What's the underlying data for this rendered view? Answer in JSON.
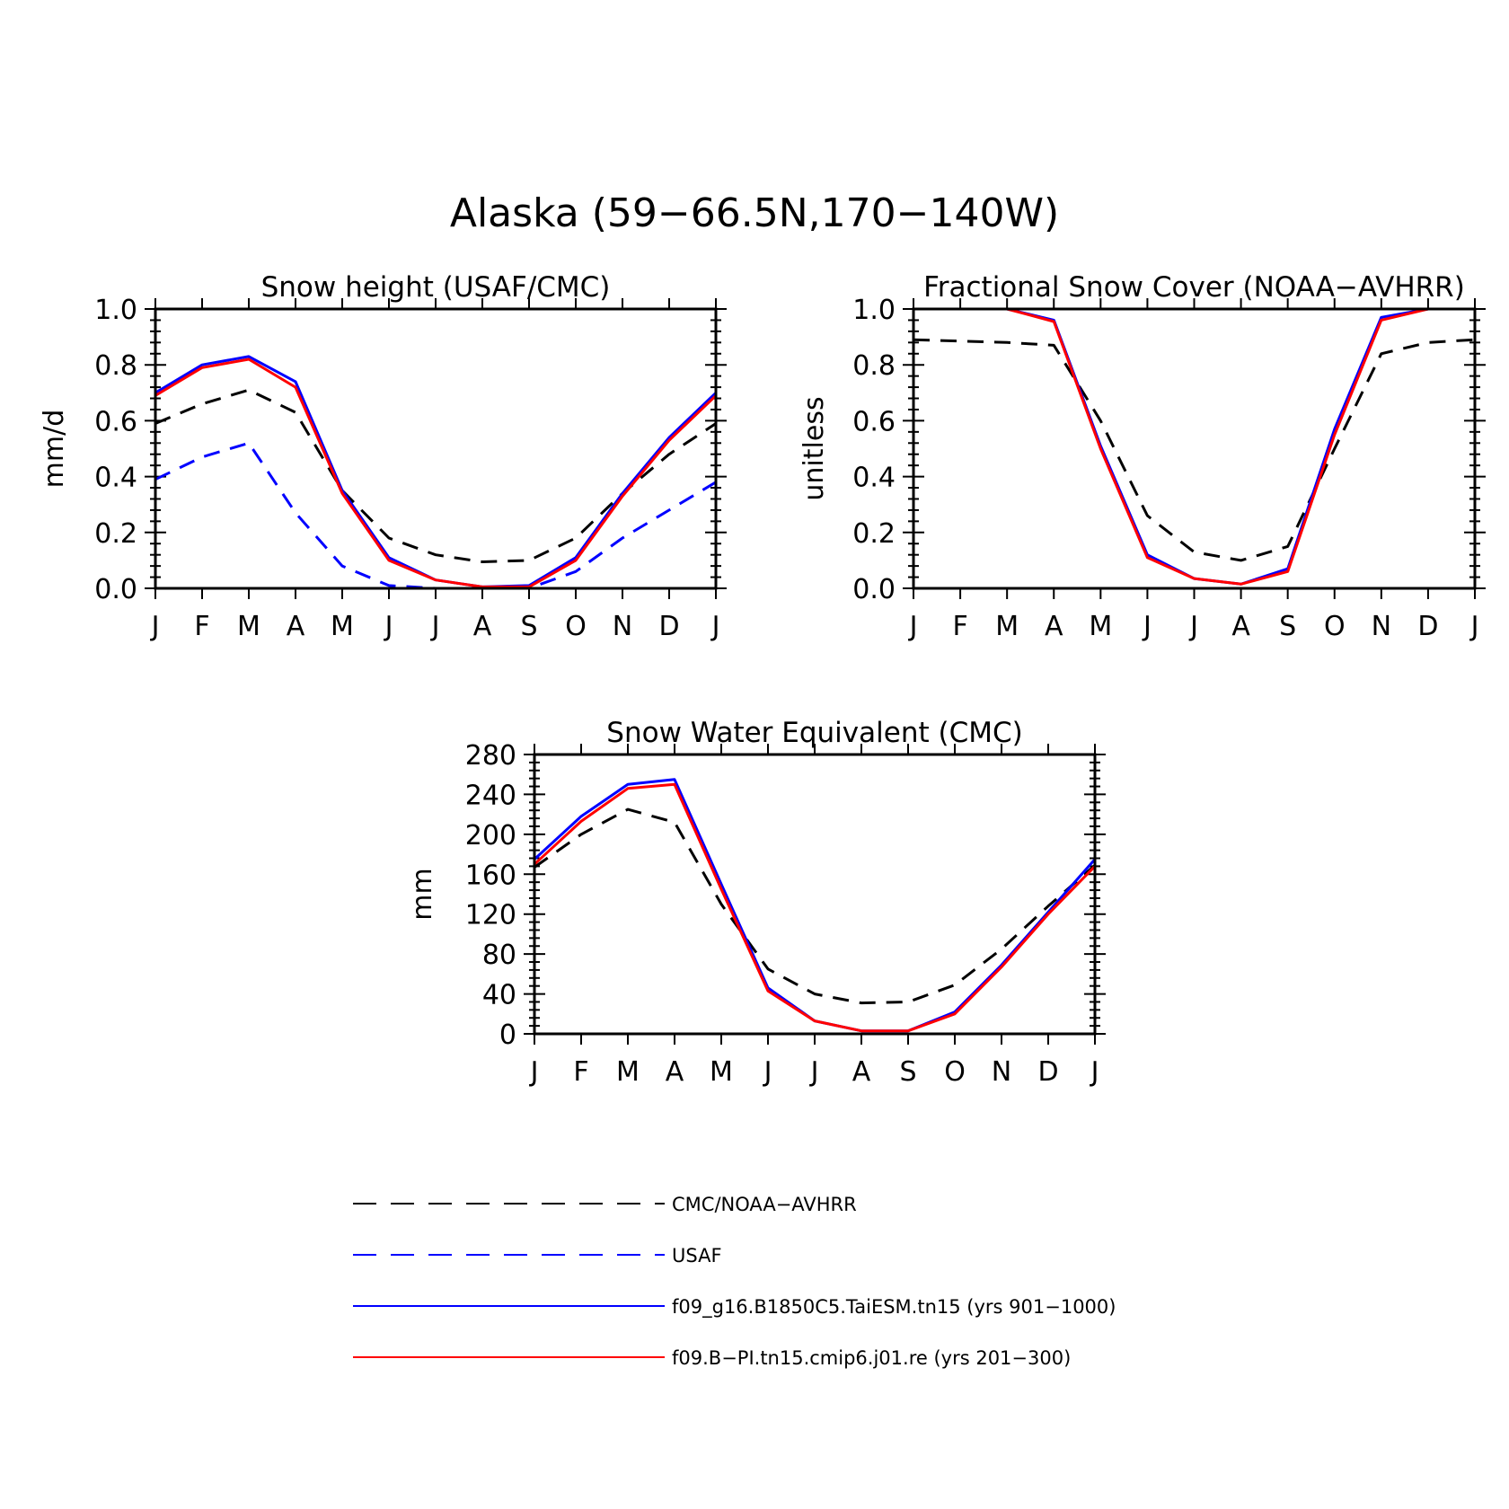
{
  "figure": {
    "title": "Alaska (59−66.5N,170−140W)"
  },
  "legend": [
    {
      "label": "CMC/NOAA−AVHRR",
      "color": "#000000",
      "dash": true
    },
    {
      "label": "USAF",
      "color": "#0000ff",
      "dash": true
    },
    {
      "label": "f09_g16.B1850C5.TaiESM.tn15 (yrs 901−1000)",
      "color": "#0000ff",
      "dash": false
    },
    {
      "label": "f09.B−PI.tn15.cmip6.j01.re (yrs 201−300)",
      "color": "#ff0000",
      "dash": false
    }
  ],
  "chart_data": [
    {
      "type": "line",
      "title": "Snow height (USAF/CMC)",
      "xlabel": "",
      "ylabel": "mm/d",
      "ylim": [
        0,
        1.0
      ],
      "yticks": [
        "0.0",
        "0.2",
        "0.4",
        "0.6",
        "0.8",
        "1.0"
      ],
      "categories": [
        "J",
        "F",
        "M",
        "A",
        "M",
        "J",
        "J",
        "A",
        "S",
        "O",
        "N",
        "D",
        "J"
      ],
      "series": [
        {
          "name": "CMC/NOAA−AVHRR",
          "color": "#000000",
          "dash": true,
          "values": [
            0.59,
            0.66,
            0.71,
            0.63,
            0.35,
            0.18,
            0.12,
            0.095,
            0.1,
            0.18,
            0.34,
            0.48,
            0.59
          ]
        },
        {
          "name": "USAF",
          "color": "#0000ff",
          "dash": true,
          "values": [
            0.39,
            0.47,
            0.52,
            0.27,
            0.08,
            0.01,
            0.0,
            0.0,
            0.0,
            0.06,
            0.18,
            0.28,
            0.38
          ]
        },
        {
          "name": "f09_g16.B1850C5.TaiESM.tn15 (yrs 901−1000)",
          "color": "#0000ff",
          "dash": false,
          "values": [
            0.7,
            0.8,
            0.83,
            0.74,
            0.35,
            0.11,
            0.03,
            0.005,
            0.01,
            0.11,
            0.34,
            0.54,
            0.7
          ]
        },
        {
          "name": "f09.B−PI.tn15.cmip6.j01.re (yrs 201−300)",
          "color": "#ff0000",
          "dash": false,
          "values": [
            0.69,
            0.79,
            0.82,
            0.72,
            0.34,
            0.1,
            0.03,
            0.005,
            0.005,
            0.1,
            0.33,
            0.53,
            0.69
          ]
        }
      ]
    },
    {
      "type": "line",
      "title": "Fractional Snow Cover (NOAA−AVHRR)",
      "xlabel": "",
      "ylabel": "unitless",
      "ylim": [
        0,
        1.0
      ],
      "yticks": [
        "0.0",
        "0.2",
        "0.4",
        "0.6",
        "0.8",
        "1.0"
      ],
      "categories": [
        "J",
        "F",
        "M",
        "A",
        "M",
        "J",
        "J",
        "A",
        "S",
        "O",
        "N",
        "D",
        "J"
      ],
      "series": [
        {
          "name": "CMC/NOAA−AVHRR",
          "color": "#000000",
          "dash": true,
          "values": [
            0.89,
            0.885,
            0.88,
            0.87,
            0.6,
            0.26,
            0.13,
            0.1,
            0.15,
            0.5,
            0.84,
            0.88,
            0.89
          ]
        },
        {
          "name": "f09_g16.B1850C5.TaiESM.tn15 (yrs 901−1000)",
          "color": "#0000ff",
          "dash": false,
          "values": [
            1.0,
            1.0,
            1.0,
            0.96,
            0.51,
            0.12,
            0.035,
            0.015,
            0.07,
            0.57,
            0.97,
            1.0,
            1.0
          ]
        },
        {
          "name": "f09.B−PI.tn15.cmip6.j01.re (yrs 201−300)",
          "color": "#ff0000",
          "dash": false,
          "values": [
            1.0,
            1.0,
            1.0,
            0.955,
            0.5,
            0.11,
            0.035,
            0.015,
            0.06,
            0.55,
            0.96,
            1.0,
            1.0
          ]
        }
      ]
    },
    {
      "type": "line",
      "title": "Snow Water Equivalent (CMC)",
      "xlabel": "",
      "ylabel": "mm",
      "ylim": [
        0,
        280
      ],
      "yticks": [
        "0",
        "40",
        "80",
        "120",
        "160",
        "200",
        "240",
        "280"
      ],
      "categories": [
        "J",
        "F",
        "M",
        "A",
        "M",
        "J",
        "J",
        "A",
        "S",
        "O",
        "N",
        "D",
        "J"
      ],
      "series": [
        {
          "name": "CMC/NOAA−AVHRR",
          "color": "#000000",
          "dash": true,
          "values": [
            167,
            200,
            225,
            212,
            130,
            65,
            40,
            31,
            32,
            49,
            85,
            128,
            169
          ]
        },
        {
          "name": "f09_g16.B1850C5.TaiESM.tn15 (yrs 901−1000)",
          "color": "#0000ff",
          "dash": false,
          "values": [
            175,
            218,
            250,
            255,
            150,
            46,
            13,
            3,
            3,
            22,
            69,
            122,
            175
          ]
        },
        {
          "name": "f09.B−PI.tn15.cmip6.j01.re (yrs 201−300)",
          "color": "#ff0000",
          "dash": false,
          "values": [
            170,
            213,
            246,
            250,
            145,
            43,
            13,
            3,
            3,
            20,
            67,
            120,
            168
          ]
        }
      ]
    }
  ]
}
